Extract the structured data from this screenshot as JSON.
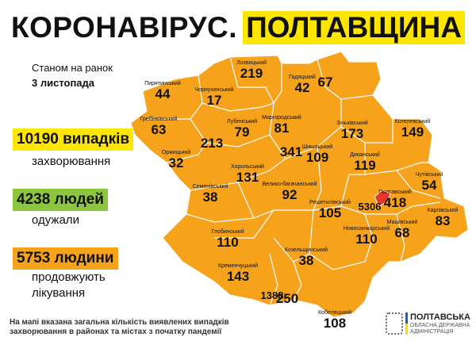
{
  "header": {
    "title_left": "КОРОНАВІРУС.",
    "title_right": "ПОЛТАВЩИНА"
  },
  "date": {
    "line1": "Станом на ранок",
    "line2": "3 листопада"
  },
  "stats": [
    {
      "value": "10190 випадків",
      "label": "захворювання",
      "color": "#ffe600"
    },
    {
      "value": "4238 людей",
      "label": "одужали",
      "color": "#8cc63f"
    },
    {
      "value": "5753 людини",
      "label": "продовжують",
      "label2": "лікування",
      "color": "#f7a21b"
    }
  ],
  "colors": {
    "region": "#f7a21b",
    "poltava_city": "#e8352a",
    "border": "#ffffff"
  },
  "districts": [
    {
      "name": "Пирятинський",
      "value": "44"
    },
    {
      "name": "Лохвицький",
      "value": "219"
    },
    {
      "name": "Гадяцький",
      "value": "42"
    },
    {
      "name": "",
      "value": "67"
    },
    {
      "name": "Чорнухинський",
      "value": "17"
    },
    {
      "name": "Гребінківський",
      "value": "63"
    },
    {
      "name": "Лубенський",
      "value": "79"
    },
    {
      "name": "",
      "value": "213"
    },
    {
      "name": "Миргородський",
      "value": "81"
    },
    {
      "name": "",
      "value": "341"
    },
    {
      "name": "Оржицький",
      "value": "32"
    },
    {
      "name": "Хорольський",
      "value": "131"
    },
    {
      "name": "Шишацький",
      "value": "109"
    },
    {
      "name": "Зіньківський",
      "value": "173"
    },
    {
      "name": "Котелевський",
      "value": "149"
    },
    {
      "name": "Диканський",
      "value": "119"
    },
    {
      "name": "Семенівський",
      "value": "38"
    },
    {
      "name": "Велико-багачанський",
      "value": "92"
    },
    {
      "name": "Решетилівський",
      "value": "105"
    },
    {
      "name": "Полтавський",
      "value": "418"
    },
    {
      "name": "Чутівський",
      "value": "54"
    },
    {
      "name": "Карлівський",
      "value": "83"
    },
    {
      "name": "Машівський",
      "value": "68"
    },
    {
      "name": "Новосанжарський",
      "value": "110"
    },
    {
      "name": "Глобинський",
      "value": "110"
    },
    {
      "name": "Козельщинський",
      "value": "38"
    },
    {
      "name": "Кременчуцький",
      "value": "143"
    },
    {
      "name": "",
      "value": "1388"
    },
    {
      "name": "",
      "value": "250"
    },
    {
      "name": "Кобеляцький",
      "value": "108"
    }
  ],
  "poltava_city": {
    "value": "5306"
  },
  "footer": {
    "line1": "На мапі вказана загальна кількість виявлених випадків",
    "line2": "захворювання в районах та містах з початку пандемії"
  },
  "logo": {
    "line1": "ПОЛТАВСЬКА",
    "line2": "ОБЛАСНА ДЕРЖАВНА",
    "line3": "АДМІНІСТРАЦІЯ"
  }
}
